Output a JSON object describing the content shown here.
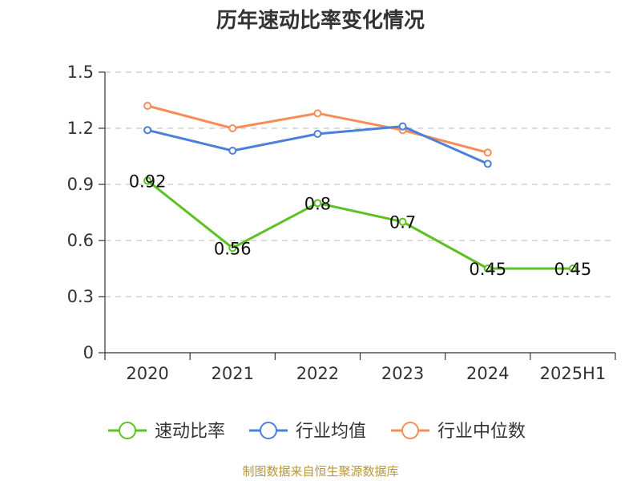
{
  "colors": {
    "series_1": "#5cc123",
    "series_2": "#4a80d9",
    "series_3": "#f78c58",
    "grid": "#c8c8c8",
    "axis": "#333333",
    "source": "#b8963c"
  },
  "chart_data": {
    "type": "line",
    "title": "历年速动比率变化情况",
    "xlabel": "",
    "ylabel": "",
    "categories": [
      "2020",
      "2021",
      "2022",
      "2023",
      "2024",
      "2025H1"
    ],
    "y_ticks": [
      "0",
      "0.3",
      "0.6",
      "0.9",
      "1.2",
      "1.5"
    ],
    "ylim": [
      0,
      1.5
    ],
    "grid": true,
    "legend_position": "bottom",
    "series": [
      {
        "name": "速动比率",
        "values": [
          0.92,
          0.56,
          0.8,
          0.7,
          0.45,
          0.45
        ],
        "data_labels": [
          "0.92",
          "0.56",
          "0.8",
          "0.7",
          "0.45",
          "0.45"
        ]
      },
      {
        "name": "行业均值",
        "values": [
          1.19,
          1.08,
          1.17,
          1.21,
          1.01,
          null
        ]
      },
      {
        "name": "行业中位数",
        "values": [
          1.32,
          1.2,
          1.28,
          1.19,
          1.07,
          null
        ]
      }
    ]
  },
  "source_text": "制图数据来自恒生聚源数据库"
}
